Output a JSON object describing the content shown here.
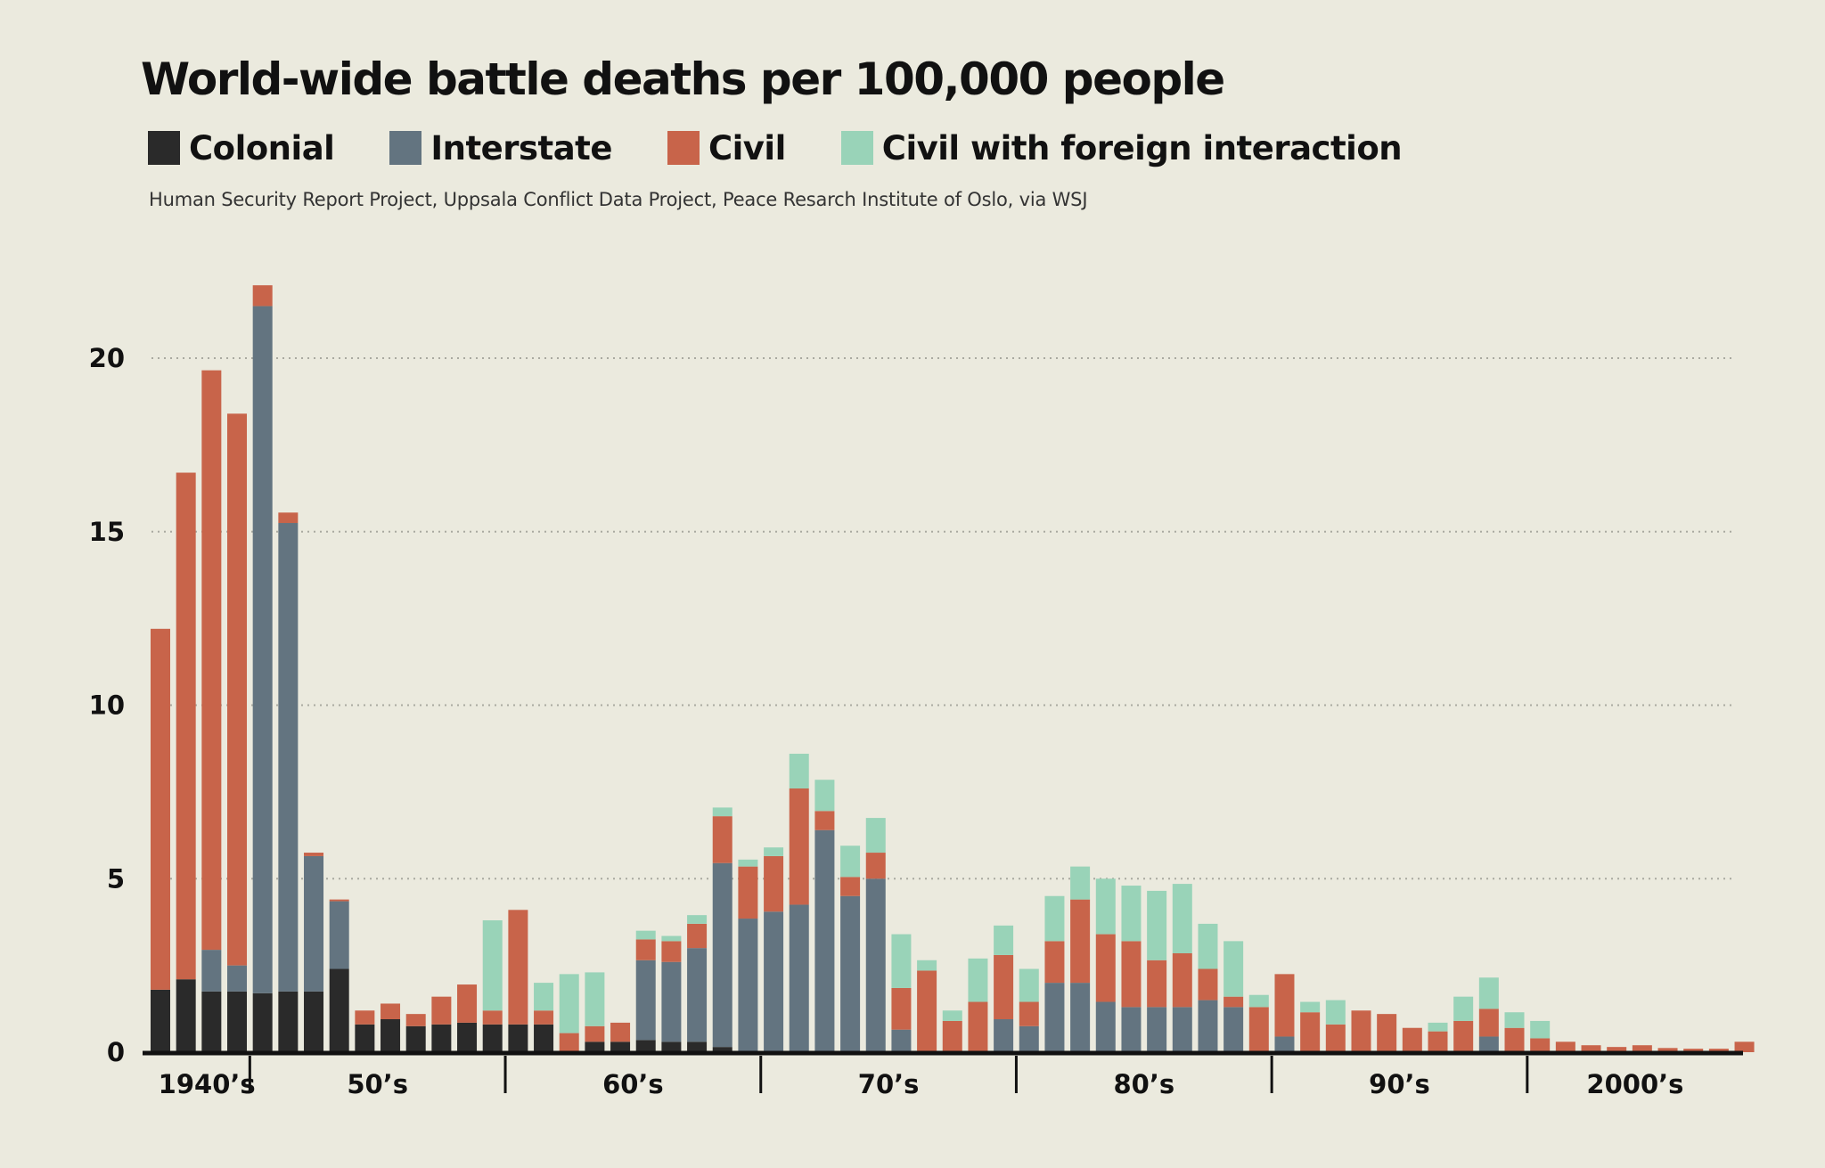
{
  "chart_data": {
    "type": "bar",
    "stacked": true,
    "title": "World-wide battle deaths per 100,000 people",
    "source": "Human Security Report Project, Uppsala Conflict Data Project, Peace Resarch Institute of Oslo, via WSJ",
    "x": [
      1946,
      1947,
      1948,
      1949,
      1950,
      1951,
      1952,
      1953,
      1954,
      1955,
      1956,
      1957,
      1958,
      1959,
      1960,
      1961,
      1962,
      1963,
      1964,
      1965,
      1966,
      1967,
      1968,
      1969,
      1970,
      1971,
      1972,
      1973,
      1974,
      1975,
      1976,
      1977,
      1978,
      1979,
      1980,
      1981,
      1982,
      1983,
      1984,
      1985,
      1986,
      1987,
      1988,
      1989,
      1990,
      1991,
      1992,
      1993,
      1994,
      1995,
      1996,
      1997,
      1998,
      1999,
      2000,
      2001,
      2002,
      2003,
      2004,
      2005,
      2006,
      2007,
      2008
    ],
    "decade_labels": [
      "1940’s",
      "50’s",
      "60’s",
      "70’s",
      "80’s",
      "90’s",
      "2000’s"
    ],
    "series": [
      {
        "name": "Colonial",
        "color": "#2a2a2a",
        "values": [
          1.8,
          2.1,
          1.75,
          1.75,
          1.7,
          1.75,
          1.75,
          2.4,
          0.8,
          0.95,
          0.75,
          0.8,
          0.85,
          0.8,
          0.8,
          0.8,
          0.0,
          0.3,
          0.3,
          0.35,
          0.3,
          0.3,
          0.15,
          0,
          0,
          0,
          0,
          0,
          0,
          0,
          0,
          0,
          0,
          0,
          0,
          0,
          0,
          0,
          0,
          0,
          0,
          0,
          0,
          0,
          0,
          0,
          0,
          0,
          0,
          0,
          0,
          0,
          0,
          0,
          0,
          0,
          0,
          0,
          0,
          0,
          0,
          0,
          0
        ]
      },
      {
        "name": "Interstate",
        "color": "#637480",
        "values": [
          0,
          0,
          1.2,
          0.75,
          19.8,
          13.5,
          3.9,
          1.95,
          0,
          0,
          0,
          0,
          0,
          0,
          0,
          0,
          0,
          0,
          0,
          2.3,
          2.3,
          2.7,
          5.3,
          3.85,
          4.05,
          4.25,
          6.4,
          4.5,
          5.0,
          0.65,
          0,
          0,
          0,
          0.95,
          0.75,
          2.0,
          2.0,
          1.45,
          1.3,
          1.3,
          1.3,
          1.5,
          1.3,
          0,
          0.45,
          0,
          0,
          0,
          0,
          0,
          0,
          0,
          0.45,
          0,
          0,
          0,
          0,
          0,
          0,
          0,
          0,
          0,
          0
        ]
      },
      {
        "name": "Civil",
        "color": "#c8644a",
        "values": [
          10.4,
          14.6,
          16.7,
          15.9,
          0.6,
          0.3,
          0.1,
          0.05,
          0.4,
          0.45,
          0.35,
          0.8,
          1.1,
          0.4,
          3.3,
          0.4,
          0.55,
          0.45,
          0.55,
          0.6,
          0.6,
          0.7,
          1.35,
          1.5,
          1.6,
          3.35,
          0.55,
          0.55,
          0.75,
          1.2,
          2.35,
          0.9,
          1.45,
          1.85,
          0.7,
          1.2,
          2.4,
          1.95,
          1.9,
          1.35,
          1.55,
          0.9,
          0.3,
          1.3,
          1.8,
          1.15,
          0.8,
          1.2,
          1.1,
          0.7,
          0.6,
          0.9,
          0.8,
          0.7,
          0.4,
          0.3,
          0.2,
          0.15,
          0.2,
          0.12,
          0.1,
          0.1,
          0.3
        ]
      },
      {
        "name": "Civil with foreign interaction",
        "color": "#99d3b8",
        "values": [
          0,
          0,
          0,
          0,
          0,
          0,
          0,
          0,
          0,
          0,
          0,
          0,
          0,
          2.6,
          0,
          0.8,
          1.7,
          1.55,
          0,
          0.25,
          0.15,
          0.25,
          0.25,
          0.2,
          0.25,
          1.0,
          0.9,
          0.9,
          1.0,
          1.55,
          0.3,
          0.3,
          1.25,
          0.85,
          0.95,
          1.3,
          0.95,
          1.6,
          1.6,
          2.0,
          2.0,
          1.3,
          1.6,
          0.35,
          0,
          0.3,
          0.7,
          0,
          0,
          0,
          0.25,
          0.7,
          0.9,
          0.45,
          0.5,
          0,
          0,
          0,
          0,
          0,
          0,
          0,
          0
        ]
      }
    ],
    "ylim": [
      0,
      22.5
    ],
    "yticks": [
      0,
      5,
      10,
      15,
      20
    ],
    "grid": true,
    "legend_position": "top"
  }
}
